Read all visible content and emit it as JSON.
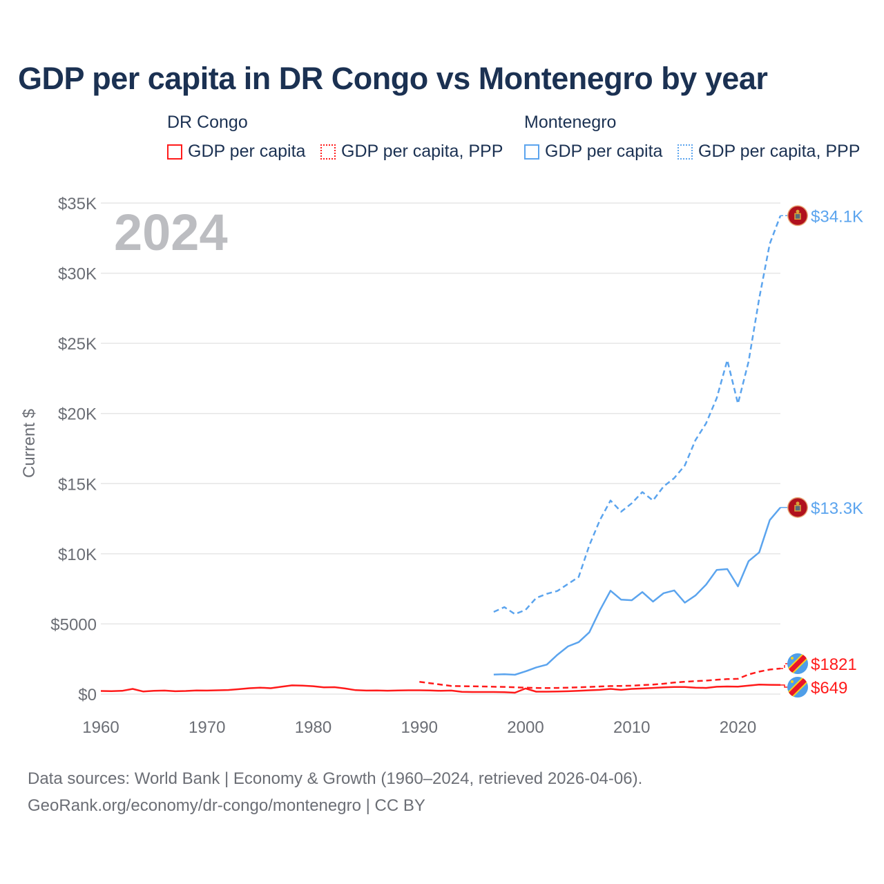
{
  "chart_data": {
    "type": "line",
    "title": "GDP per capita in DR Congo vs Montenegro by year",
    "ylabel": "Current $",
    "xlabel": "",
    "year_label": "2024",
    "xlim": [
      1960,
      2024
    ],
    "ylim": [
      0,
      35000
    ],
    "x_ticks": [
      1960,
      1970,
      1980,
      1990,
      2000,
      2010,
      2020
    ],
    "x_tick_labels": [
      "1960",
      "1970",
      "1980",
      "1990",
      "2000",
      "2010",
      "2020"
    ],
    "y_ticks": [
      0,
      5000,
      10000,
      15000,
      20000,
      25000,
      30000,
      35000
    ],
    "y_tick_labels": [
      "$0",
      "$5000",
      "$10K",
      "$15K",
      "$20K",
      "$25K",
      "$30K",
      "$35K"
    ],
    "grid": true,
    "legend_groups": [
      {
        "name": "DR Congo",
        "items": [
          "GDP per capita",
          "GDP per capita, PPP"
        ]
      },
      {
        "name": "Montenegro",
        "items": [
          "GDP per capita",
          "GDP per capita, PPP"
        ]
      }
    ],
    "series": [
      {
        "name": "DR Congo GDP per capita",
        "color": "#ff1a1a",
        "dash": false,
        "end_label": "$649",
        "flag": "dr-congo",
        "x": [
          1960,
          1961,
          1962,
          1963,
          1964,
          1965,
          1966,
          1967,
          1968,
          1969,
          1970,
          1971,
          1972,
          1973,
          1974,
          1975,
          1976,
          1977,
          1978,
          1979,
          1980,
          1981,
          1982,
          1983,
          1984,
          1985,
          1986,
          1987,
          1988,
          1989,
          1990,
          1991,
          1992,
          1993,
          1994,
          1995,
          1996,
          1997,
          1998,
          1999,
          2000,
          2001,
          2002,
          2003,
          2004,
          2005,
          2006,
          2007,
          2008,
          2009,
          2010,
          2011,
          2012,
          2013,
          2014,
          2015,
          2016,
          2017,
          2018,
          2019,
          2020,
          2021,
          2022,
          2023,
          2024
        ],
        "values": [
          220,
          210,
          230,
          370,
          180,
          230,
          250,
          200,
          220,
          260,
          250,
          270,
          290,
          350,
          420,
          460,
          420,
          520,
          620,
          600,
          560,
          480,
          490,
          400,
          280,
          250,
          260,
          240,
          260,
          270,
          270,
          260,
          230,
          250,
          160,
          150,
          150,
          150,
          140,
          100,
          400,
          170,
          170,
          180,
          200,
          230,
          270,
          300,
          370,
          300,
          370,
          400,
          440,
          480,
          500,
          500,
          460,
          440,
          520,
          540,
          530,
          600,
          680,
          660,
          649
        ]
      },
      {
        "name": "DR Congo GDP per capita, PPP",
        "color": "#ff1a1a",
        "dash": true,
        "end_label": "$1821",
        "flag": "dr-congo",
        "x": [
          1990,
          1991,
          1992,
          1993,
          1994,
          1995,
          1996,
          1997,
          1998,
          1999,
          2000,
          2001,
          2002,
          2003,
          2004,
          2005,
          2006,
          2007,
          2008,
          2009,
          2010,
          2011,
          2012,
          2013,
          2014,
          2015,
          2016,
          2017,
          2018,
          2019,
          2020,
          2021,
          2022,
          2023,
          2024
        ],
        "values": [
          870,
          780,
          680,
          580,
          560,
          550,
          540,
          520,
          510,
          480,
          460,
          440,
          430,
          440,
          460,
          480,
          510,
          540,
          570,
          580,
          600,
          640,
          680,
          740,
          820,
          880,
          920,
          960,
          1020,
          1070,
          1090,
          1400,
          1600,
          1750,
          1821
        ]
      },
      {
        "name": "Montenegro GDP per capita",
        "color": "#5ba4ee",
        "dash": false,
        "end_label": "$13.3K",
        "flag": "montenegro",
        "x": [
          1997,
          1998,
          1999,
          2000,
          2001,
          2002,
          2003,
          2004,
          2005,
          2006,
          2007,
          2008,
          2009,
          2010,
          2011,
          2012,
          2013,
          2014,
          2015,
          2016,
          2017,
          2018,
          2019,
          2020,
          2021,
          2022,
          2023,
          2024
        ],
        "values": [
          1390,
          1420,
          1380,
          1620,
          1900,
          2100,
          2800,
          3400,
          3700,
          4400,
          5970,
          7370,
          6730,
          6690,
          7270,
          6590,
          7190,
          7390,
          6520,
          7030,
          7800,
          8850,
          8910,
          7680,
          9470,
          10100,
          12400,
          13300
        ]
      },
      {
        "name": "Montenegro GDP per capita, PPP",
        "color": "#5ba4ee",
        "dash": true,
        "end_label": "$34.1K",
        "flag": "montenegro",
        "x": [
          1997,
          1998,
          1999,
          2000,
          2001,
          2002,
          2003,
          2004,
          2005,
          2006,
          2007,
          2008,
          2009,
          2010,
          2011,
          2012,
          2013,
          2014,
          2015,
          2016,
          2017,
          2018,
          2019,
          2020,
          2021,
          2022,
          2023,
          2024
        ],
        "values": [
          5860,
          6200,
          5700,
          6000,
          6850,
          7150,
          7350,
          7850,
          8350,
          10600,
          12400,
          13800,
          13000,
          13600,
          14400,
          13800,
          14800,
          15400,
          16300,
          18100,
          19300,
          21100,
          23800,
          20700,
          23700,
          28200,
          32100,
          34100
        ]
      }
    ]
  },
  "source": {
    "line1": "Data sources: World Bank | Economy & Growth (1960–2024, retrieved 2026-04-06).",
    "line2": "GeoRank.org/economy/dr-congo/montenegro | CC BY"
  }
}
